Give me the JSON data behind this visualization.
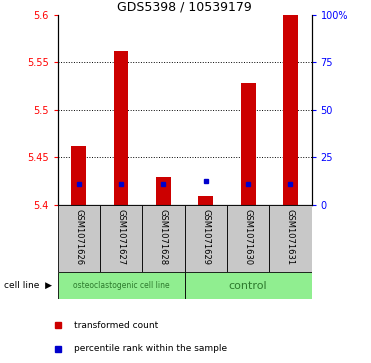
{
  "title": "GDS5398 / 10539179",
  "samples": [
    "GSM1071626",
    "GSM1071627",
    "GSM1071628",
    "GSM1071629",
    "GSM1071630",
    "GSM1071631"
  ],
  "red_values": [
    5.462,
    5.562,
    5.43,
    5.41,
    5.528,
    5.6
  ],
  "blue_values": [
    5.422,
    5.422,
    5.422,
    5.425,
    5.422,
    5.422
  ],
  "ylim_left": [
    5.4,
    5.6
  ],
  "ylim_right": [
    0,
    100
  ],
  "yticks_left": [
    5.4,
    5.45,
    5.5,
    5.55,
    5.6
  ],
  "yticks_right": [
    0,
    25,
    50,
    75,
    100
  ],
  "ytick_labels_left": [
    "5.4",
    "5.45",
    "5.5",
    "5.55",
    "5.6"
  ],
  "ytick_labels_right": [
    "0",
    "25",
    "50",
    "75",
    "100%"
  ],
  "cell_line_label": "cell line",
  "group1_label": "osteoclastogenic cell line",
  "group2_label": "control",
  "legend_red": "transformed count",
  "legend_blue": "percentile rank within the sample",
  "red_color": "#CC0000",
  "blue_color": "#0000CC",
  "bar_width": 0.35,
  "background_sample": "#C8C8C8",
  "green_color": "#90EE90",
  "green_text": "#2d7a2d"
}
